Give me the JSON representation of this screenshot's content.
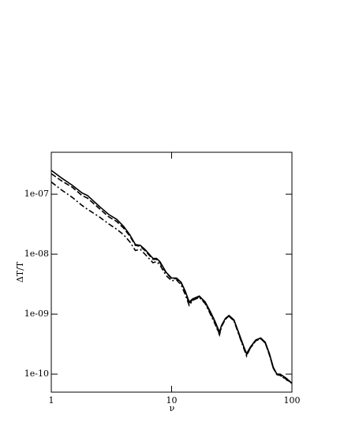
{
  "chart_data": {
    "type": "line",
    "xlabel": "ν",
    "ylabel": "ΔT/T",
    "xscale": "log",
    "yscale": "log",
    "xlim": [
      1,
      100
    ],
    "ylim": [
      5e-11,
      5e-07
    ],
    "xticks": [
      1,
      10,
      100
    ],
    "yticks": [
      {
        "value": 1e-10,
        "label": "1e-10"
      },
      {
        "value": 1e-09,
        "label": "1e-09"
      },
      {
        "value": 1e-08,
        "label": "1e-08"
      },
      {
        "value": 1e-07,
        "label": "1e-07"
      }
    ],
    "x": [
      1,
      1.2,
      1.5,
      1.8,
      2,
      2.5,
      3,
      3.5,
      4,
      4.5,
      5,
      5.5,
      6,
      7,
      7.5,
      8,
      9,
      10,
      11,
      12,
      13,
      14,
      15,
      17,
      19,
      21,
      23,
      25,
      26,
      28,
      30,
      33,
      36,
      40,
      42,
      45,
      50,
      55,
      60,
      65,
      70,
      75,
      80,
      90,
      100
    ],
    "series": [
      {
        "color": "#000000",
        "style": "solid",
        "values": [
          2.5e-07,
          1.9e-07,
          1.4e-07,
          1.05e-07,
          9.5e-08,
          6.3e-08,
          4.6e-08,
          3.8e-08,
          2.9e-08,
          2.1e-08,
          1.45e-08,
          1.4e-08,
          1.2e-08,
          8.5e-09,
          8.5e-09,
          7.5e-09,
          5e-09,
          4e-09,
          4e-09,
          3.4e-09,
          2.4e-09,
          1.6e-09,
          1.8e-09,
          2e-09,
          1.6e-09,
          1.1e-09,
          7.5e-10,
          5e-10,
          6.5e-10,
          8.5e-10,
          9.5e-10,
          8e-10,
          5e-10,
          2.8e-10,
          2.2e-10,
          2.8e-10,
          3.7e-10,
          4e-10,
          3.4e-10,
          2.2e-10,
          1.3e-10,
          1e-10,
          1e-10,
          8.5e-11,
          7e-11
        ]
      },
      {
        "color": "#000000",
        "style": "dashed",
        "values": [
          2.2e-07,
          1.7e-07,
          1.3e-07,
          9.5e-08,
          8.6e-08,
          5.8e-08,
          4.2e-08,
          3.5e-08,
          2.7e-08,
          2e-08,
          1.4e-08,
          1.35e-08,
          1.15e-08,
          8.2e-09,
          8.2e-09,
          7.2e-09,
          4.9e-09,
          3.9e-09,
          3.9e-09,
          3.3e-09,
          2.3e-09,
          1.5e-09,
          1.75e-09,
          1.95e-09,
          1.55e-09,
          1.05e-09,
          7.2e-10,
          4.6e-10,
          6.3e-10,
          8.3e-10,
          9.3e-10,
          7.8e-10,
          4.8e-10,
          2.7e-10,
          2.1e-10,
          2.7e-10,
          3.6e-10,
          3.9e-10,
          3.3e-10,
          2.1e-10,
          1.25e-10,
          1e-10,
          9.5e-11,
          8.2e-11,
          7e-11
        ]
      },
      {
        "color": "#000000",
        "style": "dashdot",
        "values": [
          1.6e-07,
          1.2e-07,
          8.8e-08,
          6.5e-08,
          5.6e-08,
          4.2e-08,
          3.2e-08,
          2.6e-08,
          2.1e-08,
          1.6e-08,
          1.15e-08,
          1.2e-08,
          1e-08,
          7.2e-09,
          7.5e-09,
          6.6e-09,
          4.4e-09,
          3.6e-09,
          3.7e-09,
          3.1e-09,
          2.1e-09,
          1.4e-09,
          1.7e-09,
          1.9e-09,
          1.5e-09,
          1e-09,
          6.8e-10,
          4.5e-10,
          6.2e-10,
          8.2e-10,
          9.2e-10,
          7.7e-10,
          4.7e-10,
          2.6e-10,
          2e-10,
          2.7e-10,
          3.6e-10,
          3.9e-10,
          3.3e-10,
          2.1e-10,
          1.25e-10,
          9.8e-11,
          9.5e-11,
          8e-11,
          7.2e-11
        ]
      }
    ]
  }
}
